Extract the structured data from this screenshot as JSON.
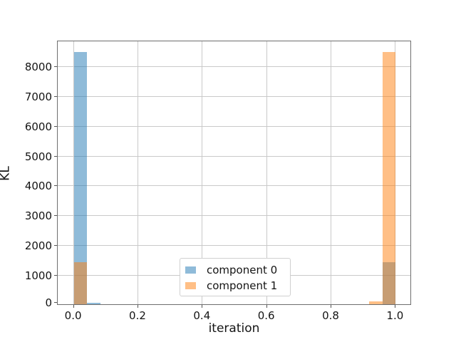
{
  "figure": {
    "background": "#ffffff",
    "text_color": "#141414",
    "grid_color": "#c9c9c9",
    "spine_color": "#6e6e6e"
  },
  "chart_data": {
    "type": "bar",
    "subtype": "histogram",
    "title": "",
    "xlabel": "iteration",
    "ylabel": "KL",
    "xlim": [
      -0.05,
      1.05
    ],
    "ylim": [
      0,
      8855
    ],
    "grid": true,
    "x_ticks": [
      "0.0",
      "0.2",
      "0.4",
      "0.6",
      "0.8",
      "1.0"
    ],
    "x_tick_values": [
      0.0,
      0.2,
      0.4,
      0.6,
      0.8,
      1.0
    ],
    "y_ticks": [
      "0",
      "1000",
      "2000",
      "3000",
      "4000",
      "5000",
      "6000",
      "7000",
      "8000"
    ],
    "y_tick_values": [
      0,
      1000,
      2000,
      3000,
      4000,
      5000,
      6000,
      7000,
      8000
    ],
    "bin_width": 0.0417,
    "alpha": 0.5,
    "series": [
      {
        "name": "component 0",
        "color": "#1f77b4",
        "bars": [
          {
            "x_start": 0.0,
            "x_end": 0.0417,
            "value": 8450
          },
          {
            "x_start": 0.0417,
            "x_end": 0.0833,
            "value": 50
          },
          {
            "x_start": 0.9583,
            "x_end": 1.0,
            "value": 1410
          }
        ]
      },
      {
        "name": "component 1",
        "color": "#ff7f0e",
        "bars": [
          {
            "x_start": 0.0,
            "x_end": 0.0417,
            "value": 1410
          },
          {
            "x_start": 0.9167,
            "x_end": 0.9583,
            "value": 85
          },
          {
            "x_start": 0.9583,
            "x_end": 1.0,
            "value": 8450
          }
        ]
      }
    ],
    "legend": {
      "location": "center-bottom",
      "entries": [
        "component 0",
        "component 1"
      ]
    }
  }
}
